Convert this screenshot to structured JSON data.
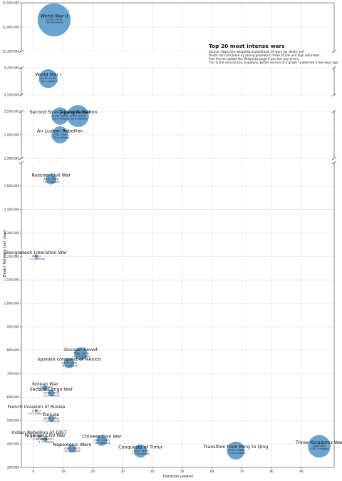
{
  "chart_data": {
    "type": "scatter",
    "title": "Top 20 most intense wars",
    "notes": [
      "Source: https://en.wikipedia.org/wiki/List_of_wars_by_death_toll",
      "Death toll calculated by taking geometric mean of low and high estimates.",
      "Feel free to update the Wikipedia page if you see any errors.",
      "This is the second and, hopefully, better version of a graph I published a few days ago."
    ],
    "xlabel": "Duration (years)",
    "ylabel": "Death Toll Rate (per year)",
    "xlim": [
      -4,
      101
    ],
    "x_ticks": [
      0,
      10,
      20,
      30,
      40,
      50,
      60,
      70,
      80,
      90
    ],
    "y_segments": [
      {
        "ylim": [
          11300000,
          11500000
        ],
        "ticks": [
          {
            "v": 11300000,
            "label": "11,300,000"
          },
          {
            "v": 11400000,
            "label": "11,400,000"
          },
          {
            "v": 11500000,
            "label": "11,500,000"
          }
        ]
      },
      {
        "ylim": [
          5100000,
          5200000
        ],
        "ticks": [
          {
            "v": 5100000,
            "label": "5,100,000"
          },
          {
            "v": 5200000,
            "label": "5,200,000"
          }
        ]
      },
      {
        "ylim": [
          2300000,
          2500000
        ],
        "ticks": [
          {
            "v": 2300000,
            "label": "2,300,000"
          },
          {
            "v": 2400000,
            "label": "2,400,000"
          },
          {
            "v": 2500000,
            "label": "2,500,000"
          }
        ]
      },
      {
        "ylim": [
          300000,
          1600000
        ],
        "ticks": [
          {
            "v": 300000,
            "label": "300,000"
          },
          {
            "v": 400000,
            "label": "400,000"
          },
          {
            "v": 500000,
            "label": "500,000"
          },
          {
            "v": 600000,
            "label": "600,000"
          },
          {
            "v": 700000,
            "label": "700,000"
          },
          {
            "v": 800000,
            "label": "800,000"
          },
          {
            "v": 900000,
            "label": "900,000"
          },
          {
            "v": 1000000,
            "label": "1,000,000"
          },
          {
            "v": 1100000,
            "label": "1,100,000"
          },
          {
            "v": 1200000,
            "label": "1,200,000"
          },
          {
            "v": 1300000,
            "label": "1,300,000"
          },
          {
            "v": 1400000,
            "label": "1,400,000"
          },
          {
            "v": 1500000,
            "label": "1,500,000"
          }
        ]
      }
    ],
    "grid": true,
    "marker_color": "#4a8fc4",
    "points": [
      {
        "name": "World War II",
        "years": "(1939–1945)",
        "deaths": "~80.6 millions",
        "x": 7,
        "y": 11430000,
        "size": 80.6
      },
      {
        "name": "World War I",
        "years": "(1914–1918)",
        "deaths": "~26.1 millions",
        "x": 5,
        "y": 5160000,
        "size": 26.1
      },
      {
        "name": "Taiping Rebellion",
        "years": "(1850–1864)",
        "deaths": "~35.6 millions",
        "x": 15,
        "y": 2480000,
        "size": 35.6
      },
      {
        "name": "Second Sino-Japanese War",
        "years": "(1937–1945)",
        "deaths": "~22.4 millions",
        "x": 9,
        "y": 2480000,
        "size": 22.4
      },
      {
        "name": "An Lushan Rebellion",
        "years": "(755–763)",
        "deaths": "~21.6 millions",
        "x": 9,
        "y": 2400000,
        "size": 21.6
      },
      {
        "name": "Russian Civil War",
        "years": "(1917–1922)",
        "deaths": "~8.6 millions",
        "x": 6,
        "y": 1530000,
        "size": 8.6
      },
      {
        "name": "Bangladesh Liberation War",
        "years": "(1971)",
        "deaths": "~1.2 millions",
        "x": 1,
        "y": 1200000,
        "size": 1.2
      },
      {
        "name": "Dungan Revolt",
        "years": "(1862–1877)",
        "deaths": "~12.6 millions",
        "x": 16,
        "y": 785000,
        "size": 12.6
      },
      {
        "name": "Spanish conquest of Mexico",
        "years": "(1519–1530)",
        "deaths": "~8.3 millions",
        "x": 12,
        "y": 745000,
        "size": 8.3
      },
      {
        "name": "Korean War",
        "years": "(1950–1953)",
        "deaths": "~2.0 millions",
        "x": 4,
        "y": 640000,
        "size": 2.0
      },
      {
        "name": "Second Congo War",
        "years": "(1998–2003)",
        "deaths": "~3.3 millions",
        "x": 6,
        "y": 617000,
        "size": 3.3
      },
      {
        "name": "French invasion of Russia",
        "years": "(1812)",
        "deaths": "~0.5 millions",
        "x": 1,
        "y": 542000,
        "size": 0.5
      },
      {
        "name": "Deluge",
        "years": "(1655–1660)",
        "deaths": "~3.0 millions",
        "x": 6,
        "y": 508000,
        "size": 3.0
      },
      {
        "name": "Indian Rebellion of 1857",
        "years": "(1857–1858)",
        "deaths": "~0.8 millions",
        "x": 2,
        "y": 432000,
        "size": 0.8
      },
      {
        "name": "Nigerian Civil War",
        "years": "(1967–1970)",
        "deaths": "~1.7 millions",
        "x": 4,
        "y": 420000,
        "size": 1.7
      },
      {
        "name": "Chinese Civil War",
        "years": "(1927–1949)",
        "deaths": "~8.7 millions",
        "x": 23,
        "y": 415000,
        "size": 8.7
      },
      {
        "name": "Napoleonic Wars",
        "years": "(1803–1815)",
        "deaths": "~4.9 millions",
        "x": 13,
        "y": 380000,
        "size": 4.9
      },
      {
        "name": "Conquests of Timur",
        "years": "(1370–1405)",
        "deaths": "~12.9 millions",
        "x": 36,
        "y": 370000,
        "size": 12.9
      },
      {
        "name": "Transition from Ming to Qing",
        "years": "(1618–1683)",
        "deaths": "~23.8 millions",
        "x": 68,
        "y": 372000,
        "size": 23.8
      },
      {
        "name": "Three Kingdoms War",
        "years": "(184–280)",
        "deaths": "~37.7 millions",
        "x": 96,
        "y": 390000,
        "size": 37.7
      }
    ]
  }
}
